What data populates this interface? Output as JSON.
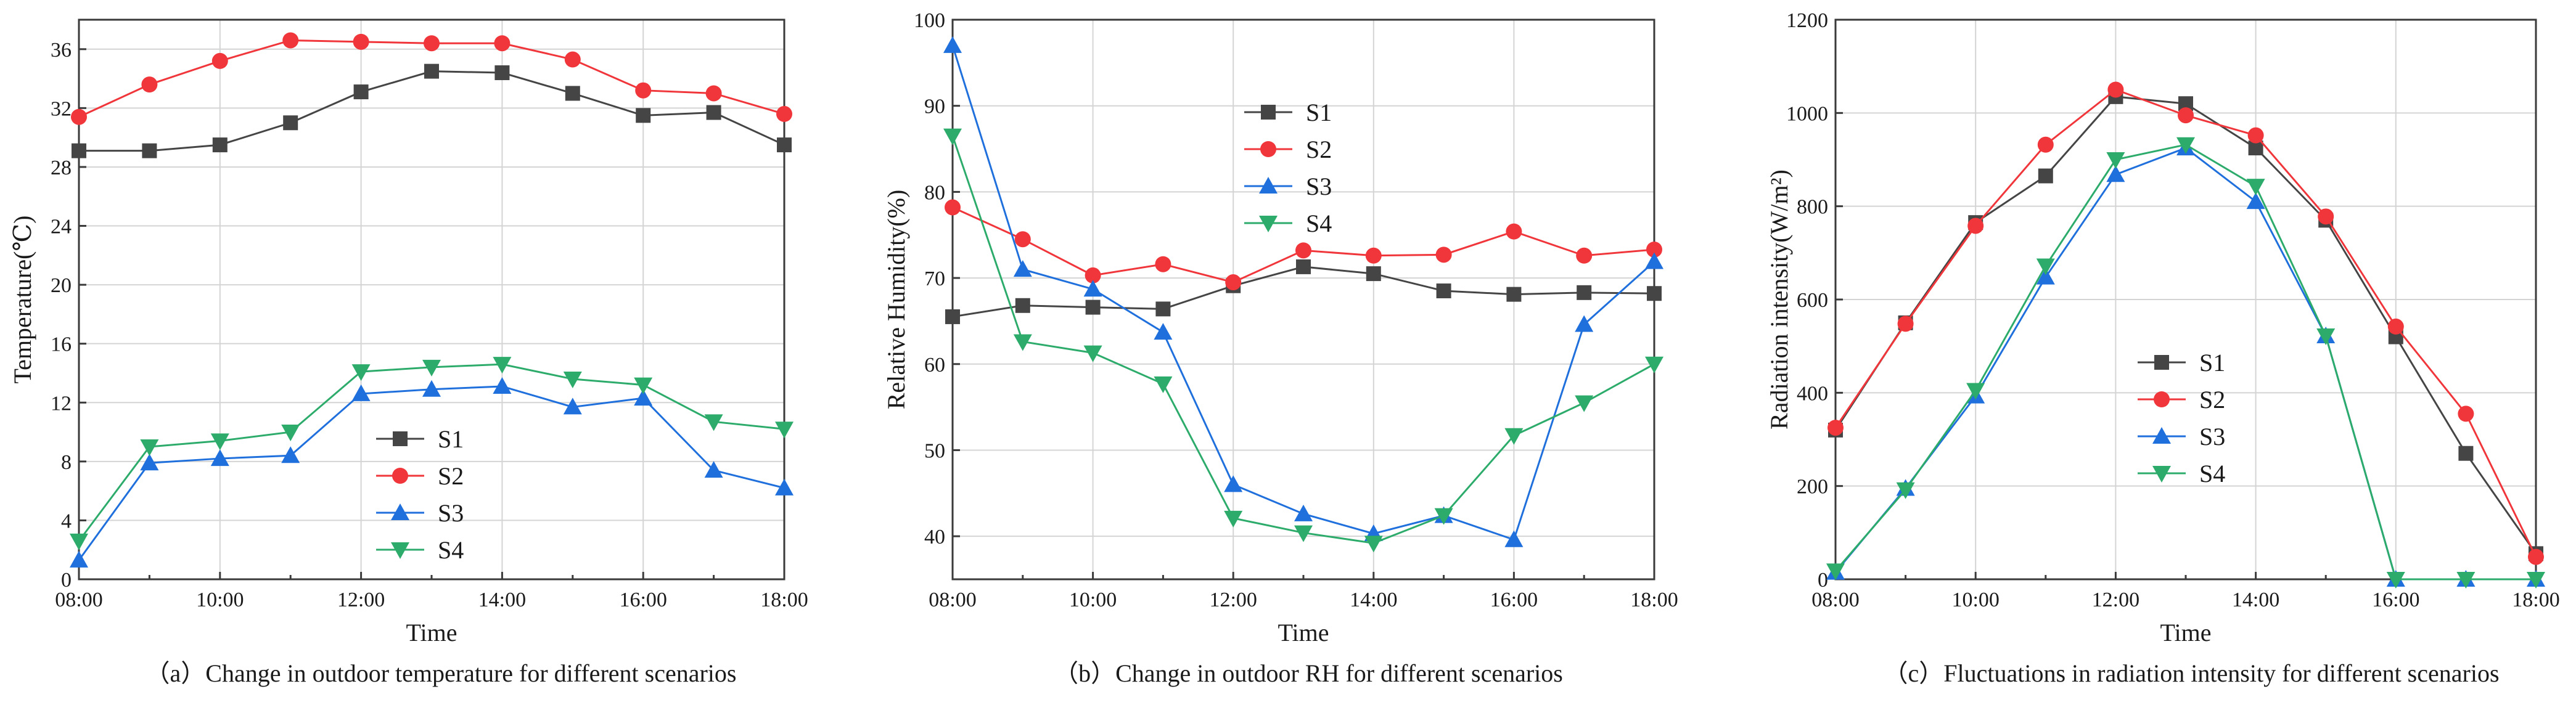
{
  "figure": {
    "charts": [
      {
        "id": "a",
        "caption": "（a）Change in outdoor temperature for different scenarios",
        "ylabel": "Temperature(℃)",
        "xlabel": "Time"
      },
      {
        "id": "b",
        "caption": "（b）Change in outdoor RH for different scenarios",
        "ylabel": "Relative Humidity(%)",
        "xlabel": "Time"
      },
      {
        "id": "c",
        "caption": "（c）Fluctuations in radiation intensity for different scenarios",
        "ylabel": "Radiation intensity(W/m²)",
        "xlabel": "Time"
      }
    ]
  },
  "series_styles": {
    "S1": {
      "color": "#454545",
      "marker": "square"
    },
    "S2": {
      "color": "#f0363a",
      "marker": "circle"
    },
    "S3": {
      "color": "#1f6fdc",
      "marker": "triangle-up"
    },
    "S4": {
      "color": "#2cab6b",
      "marker": "triangle-down"
    }
  },
  "chart_data": [
    {
      "type": "line",
      "title": "（a）Change in outdoor temperature for different scenarios",
      "xlabel": "Time",
      "ylabel": "Temperature(℃)",
      "x": [
        8,
        9,
        10,
        11,
        12,
        13,
        14,
        15,
        16,
        17,
        18
      ],
      "xlim": [
        8,
        18
      ],
      "ylim": [
        0,
        38
      ],
      "xticks": [
        8,
        10,
        12,
        14,
        16,
        18
      ],
      "xtick_labels": [
        "08:00",
        "10:00",
        "12:00",
        "14:00",
        "16:00",
        "18:00"
      ],
      "yticks": [
        0,
        4,
        8,
        12,
        16,
        20,
        24,
        28,
        32,
        36
      ],
      "ytick_labels": [
        "0",
        "4",
        "8",
        "12",
        "16",
        "20",
        "24",
        "28",
        "32",
        "36"
      ],
      "grid": true,
      "legend_position": "center-right",
      "series": [
        {
          "name": "S1",
          "values": [
            29.1,
            29.1,
            29.5,
            31.0,
            33.1,
            34.5,
            34.4,
            33.0,
            31.5,
            31.7,
            29.5
          ]
        },
        {
          "name": "S2",
          "values": [
            31.4,
            33.6,
            35.2,
            36.6,
            36.5,
            36.4,
            36.4,
            35.3,
            33.2,
            33.0,
            31.6
          ]
        },
        {
          "name": "S3",
          "values": [
            1.3,
            7.9,
            8.2,
            8.4,
            12.6,
            12.9,
            13.1,
            11.7,
            12.3,
            7.4,
            6.2
          ]
        },
        {
          "name": "S4",
          "values": [
            2.6,
            9.0,
            9.4,
            10.0,
            14.1,
            14.4,
            14.6,
            13.6,
            13.2,
            10.7,
            10.2
          ]
        }
      ]
    },
    {
      "type": "line",
      "title": "（b）Change in outdoor RH for different scenarios",
      "xlabel": "Time",
      "ylabel": "Relative Humidity(%)",
      "x": [
        8,
        9,
        10,
        11,
        12,
        13,
        14,
        15,
        16,
        17,
        18
      ],
      "xlim": [
        8,
        18
      ],
      "ylim": [
        35,
        100
      ],
      "xticks": [
        8,
        10,
        12,
        14,
        16,
        18
      ],
      "xtick_labels": [
        "08:00",
        "10:00",
        "12:00",
        "14:00",
        "16:00",
        "18:00"
      ],
      "yticks": [
        40,
        50,
        60,
        70,
        80,
        90,
        100
      ],
      "ytick_labels": [
        "40",
        "50",
        "60",
        "70",
        "80",
        "90",
        "100"
      ],
      "grid": true,
      "legend_position": "top-center",
      "series": [
        {
          "name": "S1",
          "values": [
            65.5,
            66.8,
            66.6,
            66.4,
            69.1,
            71.3,
            70.5,
            68.5,
            68.1,
            68.3,
            68.2
          ]
        },
        {
          "name": "S2",
          "values": [
            78.2,
            74.5,
            70.3,
            71.6,
            69.5,
            73.2,
            72.6,
            72.7,
            75.4,
            72.6,
            73.3
          ]
        },
        {
          "name": "S3",
          "values": [
            97.0,
            71.0,
            68.7,
            63.7,
            46.0,
            42.6,
            40.3,
            42.4,
            39.6,
            64.6,
            71.9
          ]
        },
        {
          "name": "S4",
          "values": [
            86.5,
            62.6,
            61.3,
            57.7,
            42.1,
            40.4,
            39.2,
            42.4,
            51.7,
            55.5,
            60.0
          ]
        }
      ]
    },
    {
      "type": "line",
      "title": "（c）Fluctuations in radiation intensity for different scenarios",
      "xlabel": "Time",
      "ylabel": "Radiation intensity(W/m²)",
      "x": [
        8,
        9,
        10,
        11,
        12,
        13,
        14,
        15,
        16,
        17,
        18
      ],
      "xlim": [
        8,
        18
      ],
      "ylim": [
        0,
        1200
      ],
      "xticks": [
        8,
        10,
        12,
        14,
        16,
        18
      ],
      "xtick_labels": [
        "08:00",
        "10:00",
        "12:00",
        "14:00",
        "16:00",
        "18:00"
      ],
      "yticks": [
        0,
        200,
        400,
        600,
        800,
        1000,
        1200
      ],
      "ytick_labels": [
        "0",
        "200",
        "400",
        "600",
        "800",
        "1000",
        "1200"
      ],
      "grid": true,
      "legend_position": "center-left",
      "series": [
        {
          "name": "S1",
          "values": [
            320,
            550,
            765,
            865,
            1035,
            1020,
            925,
            770,
            520,
            270,
            55
          ]
        },
        {
          "name": "S2",
          "values": [
            325,
            548,
            758,
            932,
            1050,
            995,
            952,
            778,
            542,
            355,
            48
          ]
        },
        {
          "name": "S3",
          "values": [
            15,
            195,
            393,
            648,
            868,
            925,
            810,
            522,
            0,
            0,
            0
          ]
        },
        {
          "name": "S4",
          "values": [
            18,
            192,
            405,
            672,
            900,
            932,
            843,
            522,
            0,
            0,
            0
          ]
        }
      ]
    }
  ]
}
